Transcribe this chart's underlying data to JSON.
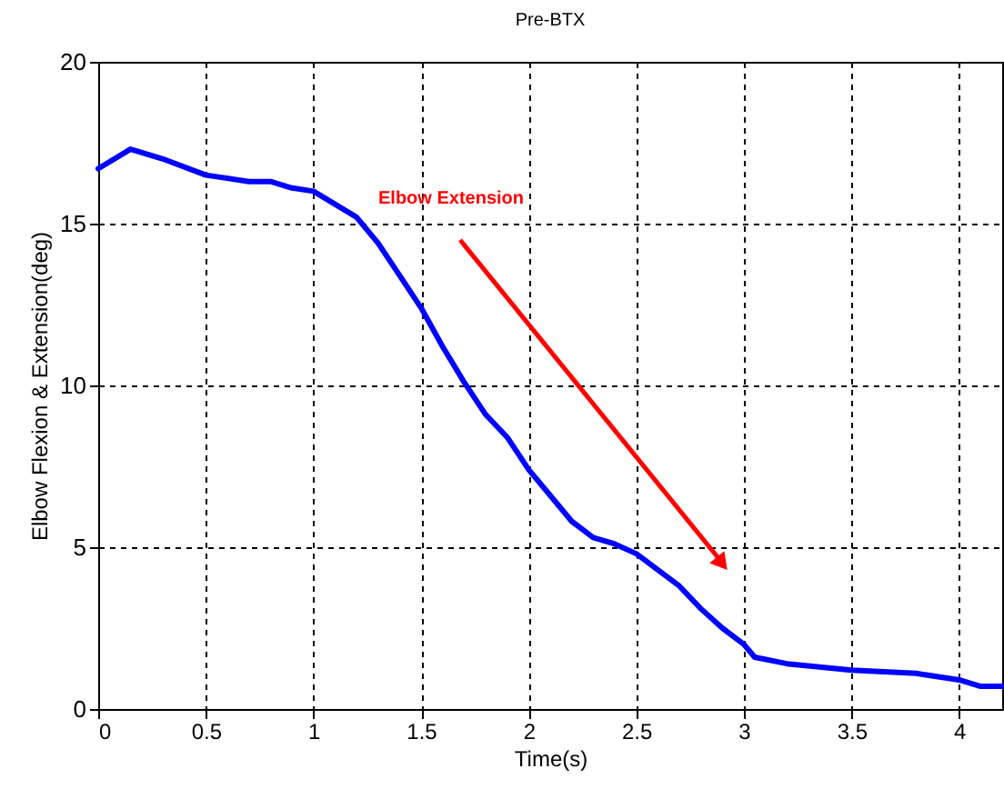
{
  "chart_data": {
    "type": "line",
    "title": "Pre-BTX",
    "xlabel": "Time(s)",
    "ylabel": "Elbow Flexion & Extension(deg)",
    "xlim": [
      0,
      4.2
    ],
    "xticks": [
      0,
      0.5,
      1,
      1.5,
      2,
      2.5,
      3,
      3.5,
      4
    ],
    "ylim": [
      0,
      20
    ],
    "yticks": [
      0,
      5,
      10,
      15,
      20
    ],
    "grid": true,
    "line_style": "solid",
    "x": [
      0,
      0.15,
      0.3,
      0.5,
      0.7,
      0.8,
      0.9,
      1.0,
      1.1,
      1.2,
      1.3,
      1.4,
      1.5,
      1.6,
      1.7,
      1.8,
      1.9,
      2.0,
      2.1,
      2.2,
      2.3,
      2.4,
      2.5,
      2.6,
      2.7,
      2.8,
      2.9,
      3.0,
      3.05,
      3.2,
      3.5,
      3.8,
      4.0,
      4.1,
      4.2
    ],
    "series": [
      {
        "color": "#0000ff",
        "values": [
          16.7,
          17.3,
          17.0,
          16.5,
          16.3,
          16.3,
          16.1,
          16.0,
          15.6,
          15.2,
          14.4,
          13.4,
          12.4,
          11.2,
          10.1,
          9.1,
          8.4,
          7.4,
          6.6,
          5.8,
          5.3,
          5.1,
          4.8,
          4.3,
          3.8,
          3.1,
          2.5,
          2.0,
          1.6,
          1.4,
          1.2,
          1.1,
          0.9,
          0.7,
          0.7
        ]
      }
    ],
    "annotations": [
      "Elbow Extension"
    ]
  }
}
